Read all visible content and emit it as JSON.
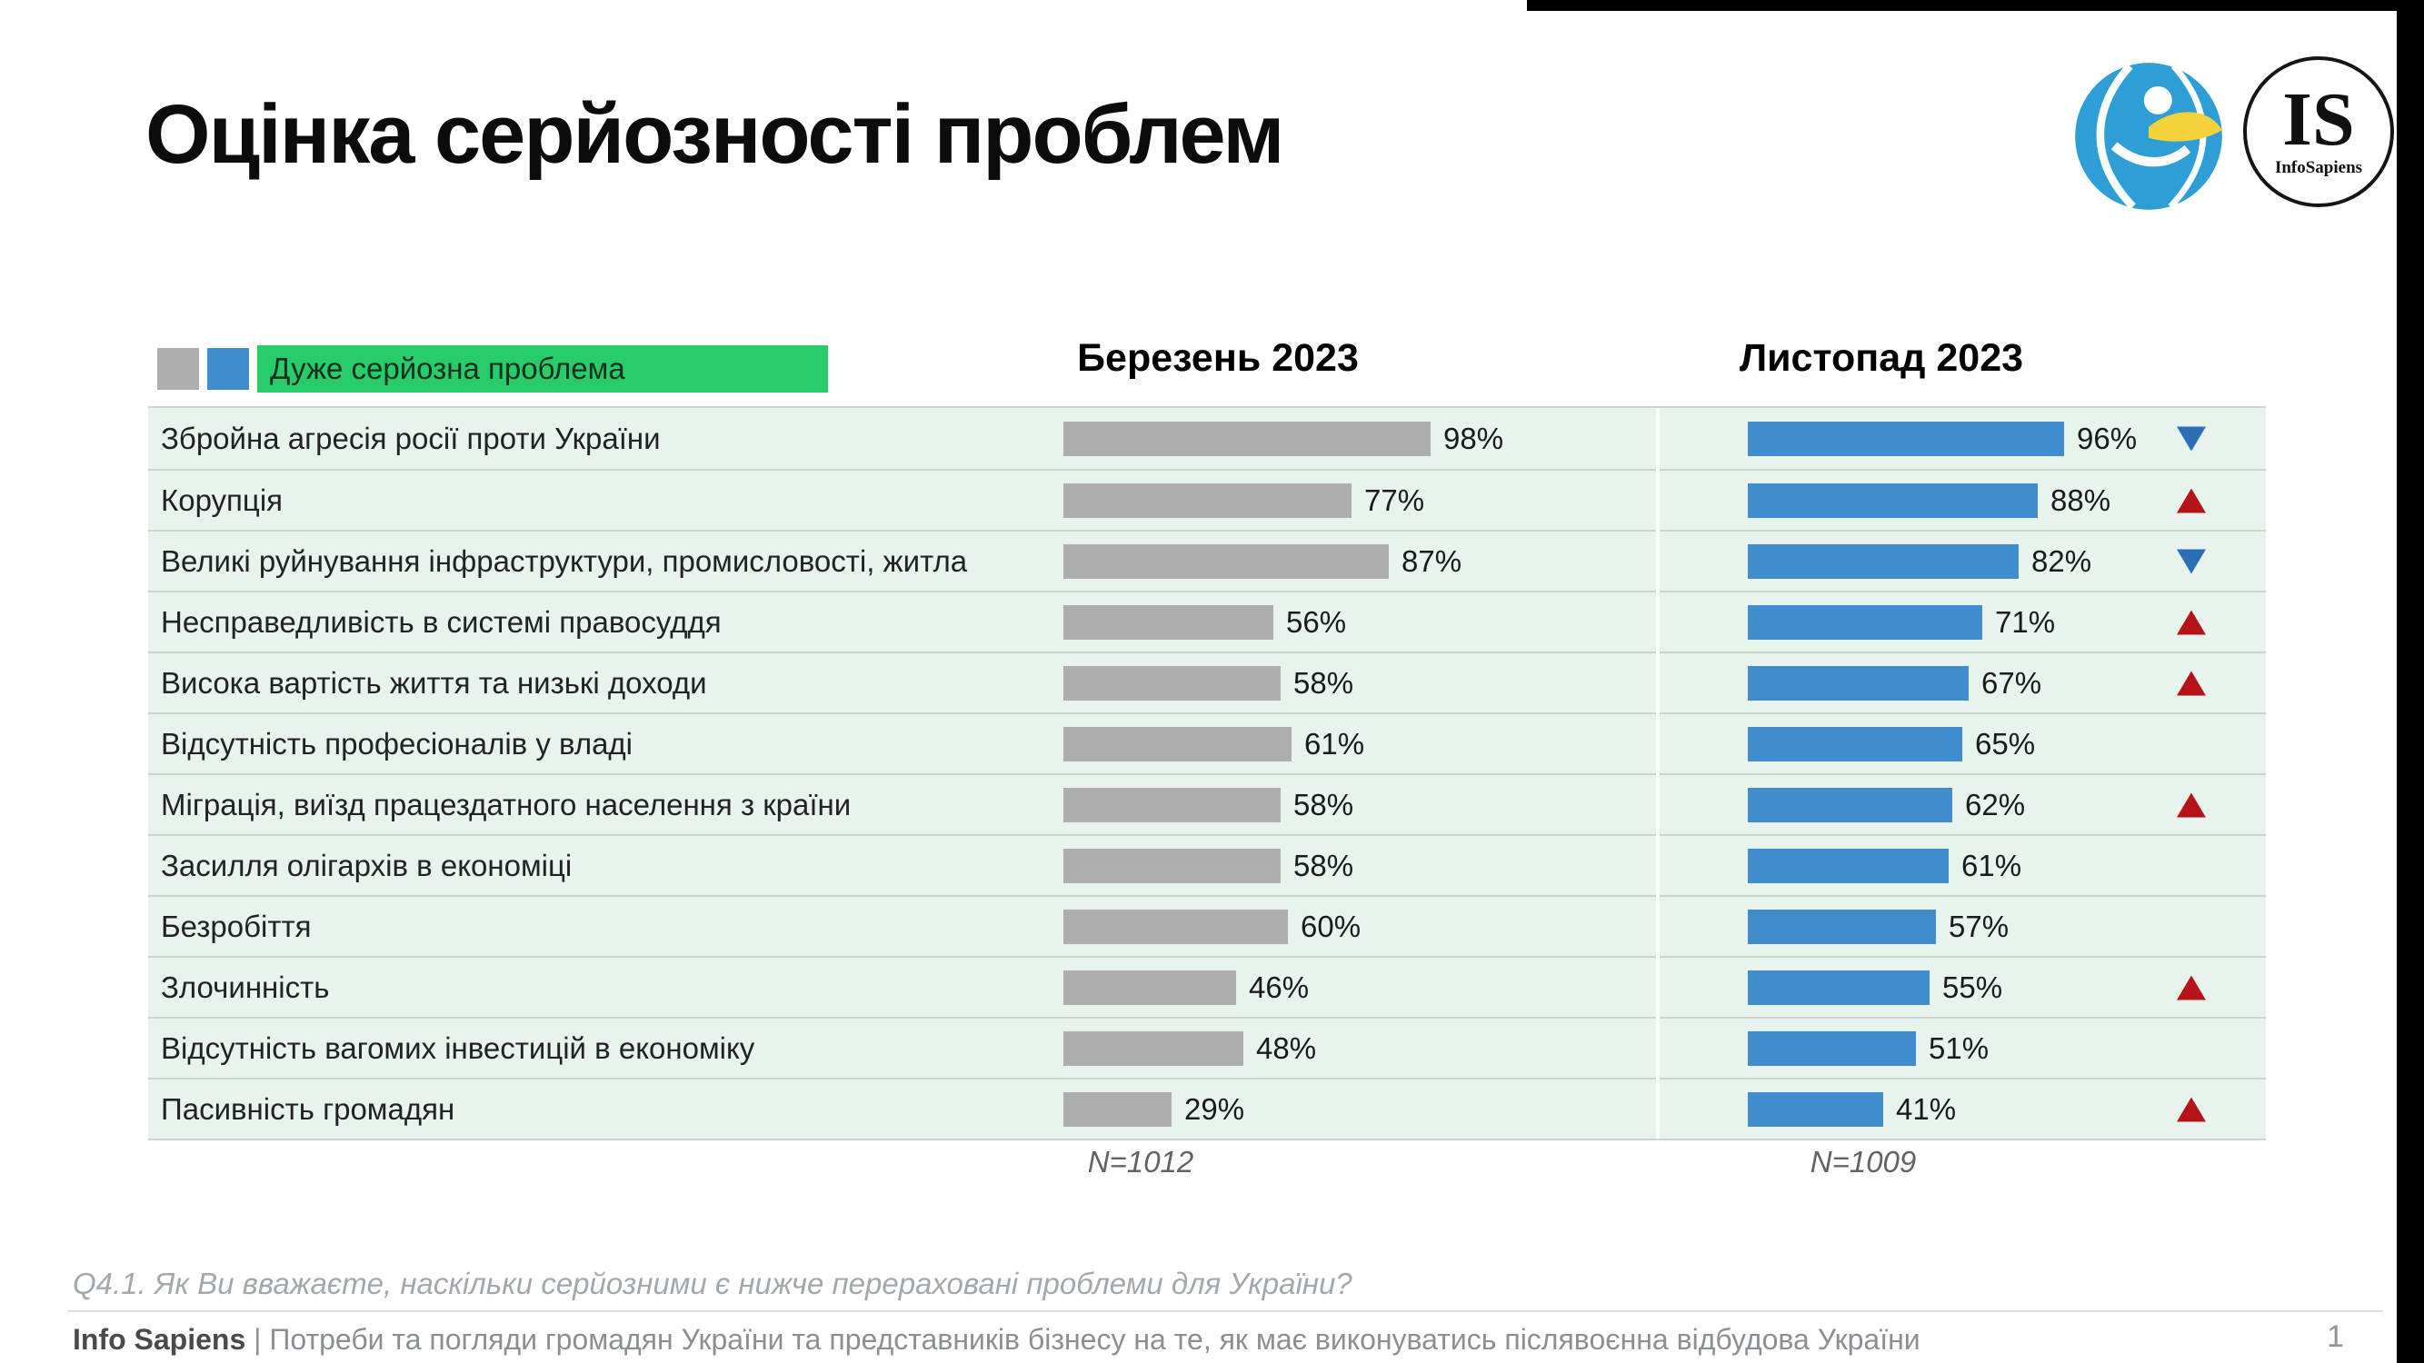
{
  "title": "Оцінка серйозності проблем",
  "logos": {
    "monogram": "IS",
    "subtext": "InfoSapiens"
  },
  "legend": {
    "label": "Дуже серйозна проблема"
  },
  "columns": {
    "march": {
      "label": "Березень 2023",
      "n": "N=1012"
    },
    "november": {
      "label": "Листопад 2023",
      "n": "N=1009"
    }
  },
  "chart_data": {
    "type": "bar",
    "orientation": "horizontal",
    "title": "Оцінка серйозності проблем",
    "legend_label": "Дуже серйозна проблема",
    "value_suffix": "%",
    "xlim": [
      0,
      100
    ],
    "categories": [
      "Збройна агресія росії проти України",
      "Корупція",
      "Великі руйнування інфраструктури, промисловості, житла",
      "Несправедливість в системі правосуддя",
      "Висока вартість життя та низькі доходи",
      "Відсутність професіоналів у владі",
      "Міграція, виїзд працездатного населення з країни",
      "Засилля олігархів в економіці",
      "Безробіття",
      "Злочинність",
      "Відсутність вагомих інвестицій в економіку",
      "Пасивність громадян"
    ],
    "series": [
      {
        "name": "Березень 2023",
        "n": "N=1012",
        "color": "#aeaeae",
        "values": [
          98,
          77,
          87,
          56,
          58,
          61,
          58,
          58,
          60,
          46,
          48,
          29
        ]
      },
      {
        "name": "Листопад 2023",
        "n": "N=1009",
        "color": "#3f8dcd",
        "values": [
          96,
          88,
          82,
          71,
          67,
          65,
          62,
          61,
          57,
          55,
          51,
          41
        ]
      }
    ],
    "trends": [
      "down",
      "up",
      "down",
      "up",
      "up",
      "none",
      "up",
      "none",
      "none",
      "up",
      "none",
      "up"
    ],
    "trend_colors": {
      "up": "#b61318",
      "down": "#2d6fb7"
    }
  },
  "footer": {
    "question": "Q4.1. Як Ви вважаєте, наскільки серйозними є нижче перераховані проблеми для України?",
    "source_bold": "Info Sapiens",
    "source_rest": " | Потреби та погляди громадян України та представників бізнесу на те, як має виконуватись післявоєнна відбудова України",
    "page": "1"
  },
  "colors": {
    "row_bg": "#e9f3ee",
    "gray_bar": "#aeaeae",
    "blue_bar": "#3f8dcd",
    "legend_green": "#29cc6a"
  }
}
